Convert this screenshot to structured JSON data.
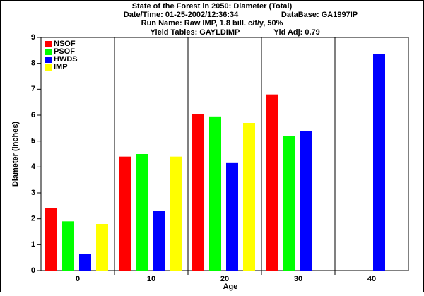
{
  "chart_data": {
    "type": "bar",
    "title": "State of the Forest in 2050: Diameter (Total)",
    "subtitles": [
      "Date/Time: 01-25-2002/12:36:34",
      "DataBase: GA1997IP",
      "Run Name: Raw IMP, 1.8 bill. c/f/y, 50%",
      "Yield Tables: GAYLDIMP",
      "Yld Adj: 0.79"
    ],
    "x_label": "Age",
    "y_label": "Diameter (inches)",
    "categories": [
      "0",
      "10",
      "20",
      "30",
      "40"
    ],
    "series": [
      {
        "name": "NSOF",
        "color": "#ff0000",
        "values": [
          2.4,
          4.4,
          6.05,
          6.8,
          null
        ]
      },
      {
        "name": "PSOF",
        "color": "#00ff00",
        "values": [
          1.9,
          4.5,
          5.95,
          5.2,
          null
        ]
      },
      {
        "name": "HWDS",
        "color": "#0000ff",
        "values": [
          0.65,
          2.3,
          4.15,
          5.4,
          8.35
        ]
      },
      {
        "name": "IMP",
        "color": "#ffff00",
        "values": [
          1.8,
          4.4,
          5.7,
          null,
          null
        ]
      }
    ],
    "ylim": [
      0,
      9
    ],
    "yticks": [
      0,
      1,
      2,
      3,
      4,
      5,
      6,
      7,
      8,
      9
    ],
    "legend": "top-left"
  }
}
